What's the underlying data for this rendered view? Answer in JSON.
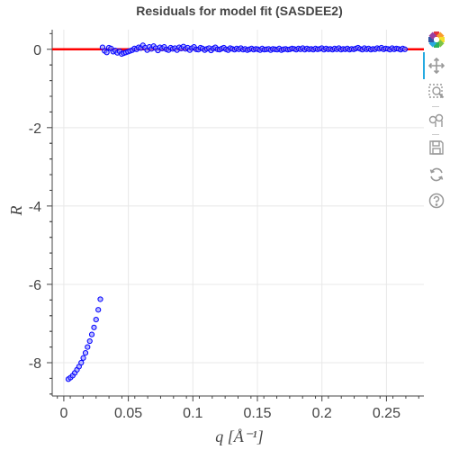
{
  "chart_data": {
    "type": "scatter",
    "title": "Residuals for model fit (SASDEE2)",
    "xlabel": "q [Å⁻¹]",
    "ylabel": "R",
    "xlim": [
      -0.009,
      0.279
    ],
    "ylim": [
      -8.85,
      0.5
    ],
    "x_ticks": [
      0,
      0.05,
      0.1,
      0.15,
      0.2,
      0.25
    ],
    "x_tick_labels": [
      "0",
      "0.05",
      "0.1",
      "0.15",
      "0.2",
      "0.25"
    ],
    "y_ticks": [
      0,
      -2,
      -4,
      -6,
      -8
    ],
    "y_tick_labels": [
      "0",
      "-2",
      "-4",
      "-6",
      "-8"
    ],
    "grid": true,
    "zero_line": {
      "y": 0,
      "color": "#ff0000"
    },
    "series": [
      {
        "marker": "circle",
        "color": "#0000ff",
        "fill": "#8c8cff",
        "points": [
          [
            0.0035,
            -8.42
          ],
          [
            0.0052,
            -8.38
          ],
          [
            0.0069,
            -8.33
          ],
          [
            0.0085,
            -8.26
          ],
          [
            0.0102,
            -8.18
          ],
          [
            0.0118,
            -8.1
          ],
          [
            0.0135,
            -8.0
          ],
          [
            0.0151,
            -7.88
          ],
          [
            0.0168,
            -7.75
          ],
          [
            0.0184,
            -7.6
          ],
          [
            0.0201,
            -7.45
          ],
          [
            0.0217,
            -7.28
          ],
          [
            0.0234,
            -7.1
          ],
          [
            0.025,
            -6.9
          ],
          [
            0.0267,
            -6.65
          ],
          [
            0.0283,
            -6.38
          ],
          [
            0.03,
            0.05
          ],
          [
            0.0316,
            -0.04
          ],
          [
            0.0333,
            -0.08
          ],
          [
            0.0349,
            0.04
          ],
          [
            0.0366,
            0.02
          ],
          [
            0.0382,
            -0.06
          ],
          [
            0.0399,
            -0.03
          ],
          [
            0.0415,
            -0.09
          ],
          [
            0.0432,
            -0.05
          ],
          [
            0.0448,
            -0.12
          ],
          [
            0.0465,
            -0.1
          ],
          [
            0.0481,
            -0.08
          ],
          [
            0.0498,
            -0.06
          ],
          [
            0.0514,
            -0.04
          ],
          [
            0.0531,
            -0.02
          ],
          [
            0.0547,
            0.02
          ],
          [
            0.0564,
            0.0
          ],
          [
            0.058,
            0.05
          ],
          [
            0.0597,
            0.03
          ],
          [
            0.0613,
            0.1
          ],
          [
            0.063,
            0.04
          ],
          [
            0.0646,
            -0.02
          ],
          [
            0.0663,
            0.06
          ],
          [
            0.0679,
            0.01
          ],
          [
            0.0696,
            0.08
          ],
          [
            0.0712,
            0.03
          ],
          [
            0.0729,
            -0.03
          ],
          [
            0.0745,
            0.05
          ],
          [
            0.0762,
            0.02
          ],
          [
            0.0778,
            0.06
          ],
          [
            0.0795,
            0.0
          ],
          [
            0.0811,
            -0.02
          ],
          [
            0.0828,
            0.04
          ],
          [
            0.0844,
            0.01
          ],
          [
            0.0861,
            0.03
          ],
          [
            0.0877,
            -0.02
          ],
          [
            0.0894,
            0.05
          ],
          [
            0.091,
            0.02
          ],
          [
            0.0927,
            0.07
          ],
          [
            0.0943,
            0.01
          ],
          [
            0.096,
            0.04
          ],
          [
            0.0976,
            -0.02
          ],
          [
            0.0993,
            0.03
          ],
          [
            0.1009,
            0.06
          ],
          [
            0.1026,
            0.0
          ],
          [
            0.1042,
            -0.01
          ],
          [
            0.1059,
            0.04
          ],
          [
            0.1075,
            0.02
          ],
          [
            0.1092,
            -0.02
          ],
          [
            0.1108,
            0.01
          ],
          [
            0.1125,
            0.03
          ],
          [
            0.1141,
            -0.03
          ],
          [
            0.1158,
            0.02
          ],
          [
            0.1174,
            0.05
          ],
          [
            0.1191,
            0.0
          ],
          [
            0.1207,
            -0.01
          ],
          [
            0.1224,
            0.02
          ],
          [
            0.124,
            0.04
          ],
          [
            0.1257,
            0.0
          ],
          [
            0.1273,
            -0.02
          ],
          [
            0.129,
            0.03
          ],
          [
            0.1306,
            0.01
          ],
          [
            0.1323,
            -0.01
          ],
          [
            0.1339,
            0.02
          ],
          [
            0.1356,
            0.0
          ],
          [
            0.1372,
            0.03
          ],
          [
            0.1389,
            -0.01
          ],
          [
            0.1405,
            0.01
          ],
          [
            0.1422,
            -0.02
          ],
          [
            0.1438,
            0.0
          ],
          [
            0.1455,
            0.02
          ],
          [
            0.1471,
            -0.01
          ],
          [
            0.1488,
            0.01
          ],
          [
            0.1504,
            0.0
          ],
          [
            0.1521,
            -0.02
          ],
          [
            0.1537,
            0.02
          ],
          [
            0.1554,
            -0.01
          ],
          [
            0.157,
            0.0
          ],
          [
            0.1587,
            0.01
          ],
          [
            0.1603,
            -0.02
          ],
          [
            0.162,
            0.01
          ],
          [
            0.1636,
            0.0
          ],
          [
            0.1653,
            -0.01
          ],
          [
            0.1669,
            0.02
          ],
          [
            0.1686,
            -0.02
          ],
          [
            0.1702,
            0.0
          ],
          [
            0.1719,
            0.01
          ],
          [
            0.1735,
            -0.01
          ],
          [
            0.1752,
            0.0
          ],
          [
            0.1768,
            0.02
          ],
          [
            0.1785,
            0.01
          ],
          [
            0.1801,
            -0.01
          ],
          [
            0.1818,
            0.02
          ],
          [
            0.1834,
            0.0
          ],
          [
            0.1851,
            0.03
          ],
          [
            0.1867,
            -0.01
          ],
          [
            0.1884,
            0.02
          ],
          [
            0.19,
            0.0
          ],
          [
            0.1917,
            0.01
          ],
          [
            0.1933,
            -0.01
          ],
          [
            0.195,
            0.02
          ],
          [
            0.1966,
            0.0
          ],
          [
            0.1983,
            0.01
          ],
          [
            0.1999,
            0.03
          ],
          [
            0.2016,
            -0.01
          ],
          [
            0.2032,
            0.02
          ],
          [
            0.2049,
            0.0
          ],
          [
            0.2065,
            0.01
          ],
          [
            0.2082,
            -0.01
          ],
          [
            0.2098,
            0.02
          ],
          [
            0.2115,
            0.0
          ],
          [
            0.2131,
            0.03
          ],
          [
            0.2148,
            -0.01
          ],
          [
            0.2164,
            0.01
          ],
          [
            0.2181,
            0.0
          ],
          [
            0.2197,
            0.02
          ],
          [
            0.2214,
            -0.01
          ],
          [
            0.223,
            0.01
          ],
          [
            0.2247,
            0.0
          ],
          [
            0.2263,
            0.02
          ],
          [
            0.228,
            0.04
          ],
          [
            0.2296,
            0.01
          ],
          [
            0.2313,
            -0.01
          ],
          [
            0.2329,
            0.03
          ],
          [
            0.2346,
            0.0
          ],
          [
            0.2362,
            0.02
          ],
          [
            0.2379,
            -0.01
          ],
          [
            0.2395,
            0.01
          ],
          [
            0.2412,
            0.0
          ],
          [
            0.2428,
            0.03
          ],
          [
            0.2445,
            0.01
          ],
          [
            0.2461,
            0.04
          ],
          [
            0.2478,
            0.0
          ],
          [
            0.2494,
            0.02
          ],
          [
            0.2511,
            0.01
          ],
          [
            0.2527,
            -0.01
          ],
          [
            0.2544,
            0.03
          ],
          [
            0.256,
            0.0
          ],
          [
            0.2577,
            0.02
          ],
          [
            0.2593,
            0.01
          ],
          [
            0.261,
            -0.01
          ],
          [
            0.2626,
            0.02
          ],
          [
            0.2643,
            0.0
          ]
        ]
      }
    ]
  },
  "toolbar": {
    "tools": [
      {
        "icon": "bokeh-logo-icon",
        "interactive": false
      },
      {
        "icon": "pan-icon",
        "interactive": true,
        "active": true
      },
      {
        "icon": "box-zoom-icon",
        "interactive": true
      },
      {
        "icon": "wheel-zoom-icon",
        "interactive": true
      },
      {
        "icon": "save-icon",
        "interactive": true
      },
      {
        "icon": "reset-icon",
        "interactive": true
      },
      {
        "icon": "help-icon",
        "interactive": true
      }
    ]
  }
}
